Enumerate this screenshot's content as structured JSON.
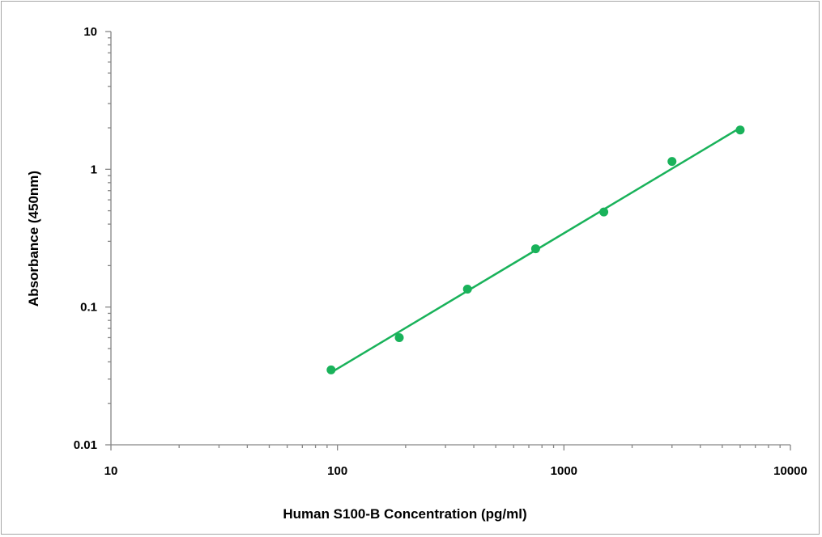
{
  "chart_data": {
    "type": "scatter",
    "title": "",
    "xlabel": "Human S100-B Concentration (pg/ml)",
    "ylabel": "Absorbance (450nm)",
    "x_scale": "log",
    "y_scale": "log",
    "xlim": [
      10,
      10000
    ],
    "ylim": [
      0.01,
      10
    ],
    "x_ticks": [
      "10",
      "100",
      "1000",
      "10000"
    ],
    "y_ticks": [
      "0.01",
      "0.1",
      "1",
      "10"
    ],
    "grid": false,
    "legend": "none",
    "series": [
      {
        "marker_color": "#19b25a",
        "x": [
          93.75,
          187.5,
          375,
          750,
          1500,
          3000,
          6000
        ],
        "y": [
          0.035,
          0.06,
          0.135,
          0.265,
          0.49,
          1.14,
          1.93
        ]
      }
    ],
    "trendline": {
      "type": "power",
      "color": "#19b25a",
      "x": [
        93.75,
        6000
      ],
      "y": [
        0.0335,
        2.0
      ]
    }
  }
}
